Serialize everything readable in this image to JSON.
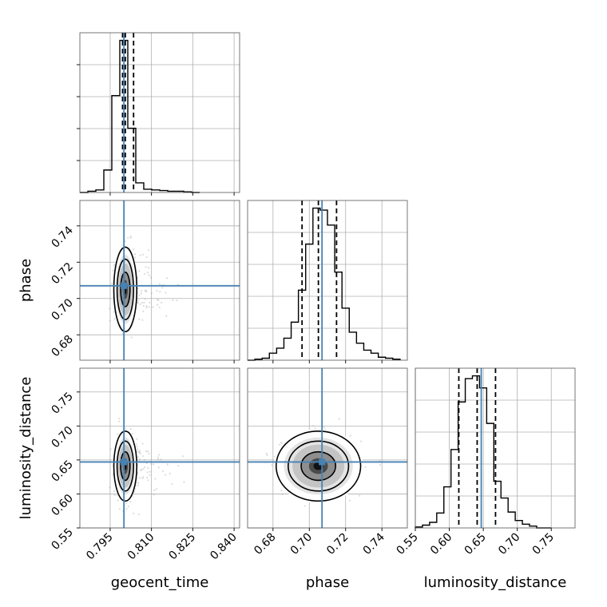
{
  "chart_data": {
    "type": "corner",
    "parameters": [
      "geocent_time",
      "phase",
      "luminosity_distance"
    ],
    "axis_labels": {
      "geocent_time": "geocent_time",
      "phase": "phase",
      "luminosity_distance": "luminosity_distance"
    },
    "truths": {
      "geocent_time": 0.8,
      "phase": 0.707,
      "luminosity_distance": 0.647
    },
    "ranges": {
      "geocent_time": [
        0.784,
        0.842
      ],
      "phase": [
        0.666,
        0.754
      ],
      "luminosity_distance": [
        0.55,
        0.785
      ]
    },
    "ticks": {
      "geocent_time": [
        "0.795",
        "0.810",
        "0.825",
        "0.840"
      ],
      "phase": [
        "0.68",
        "0.70",
        "0.72",
        "0.74"
      ],
      "luminosity_distance": [
        "0.55",
        "0.60",
        "0.65",
        "0.70",
        "0.75"
      ]
    },
    "quantiles": {
      "geocent_time": [
        0.7995,
        0.8005,
        0.8035
      ],
      "phase": [
        0.696,
        0.705,
        0.715
      ],
      "luminosity_distance": [
        0.614,
        0.641,
        0.668
      ]
    },
    "histograms": {
      "geocent_time": {
        "edges": [
          0.784,
          0.7869,
          0.7898,
          0.7927,
          0.7956,
          0.7985,
          0.8014,
          0.8043,
          0.8072,
          0.8101,
          0.813,
          0.8159,
          0.8188,
          0.8217,
          0.8246,
          0.8275
        ],
        "counts": [
          0,
          2,
          4,
          35,
          151,
          237,
          100,
          15,
          5,
          4,
          3,
          2,
          2,
          1,
          0
        ]
      },
      "phase": {
        "edges": [
          0.666,
          0.67,
          0.674,
          0.678,
          0.682,
          0.686,
          0.69,
          0.694,
          0.698,
          0.702,
          0.706,
          0.71,
          0.714,
          0.718,
          0.722,
          0.726,
          0.73,
          0.734,
          0.738,
          0.742,
          0.746,
          0.75
        ],
        "counts": [
          0,
          1,
          2,
          7,
          12,
          22,
          38,
          70,
          116,
          152,
          150,
          135,
          88,
          52,
          28,
          17,
          10,
          7,
          3,
          2,
          1
        ]
      },
      "luminosity_distance": {
        "edges": [
          0.55,
          0.5605,
          0.571,
          0.5815,
          0.592,
          0.6025,
          0.613,
          0.6235,
          0.634,
          0.6445,
          0.655,
          0.6655,
          0.676,
          0.6865,
          0.697,
          0.7075,
          0.718,
          0.7285,
          0.7395,
          0.75
        ],
        "counts": [
          1,
          3,
          6,
          16,
          44,
          84,
          135,
          160,
          163,
          150,
          112,
          50,
          32,
          17,
          8,
          4,
          2,
          0,
          0
        ]
      }
    },
    "grid": true,
    "truth_color": "#4682b4"
  }
}
